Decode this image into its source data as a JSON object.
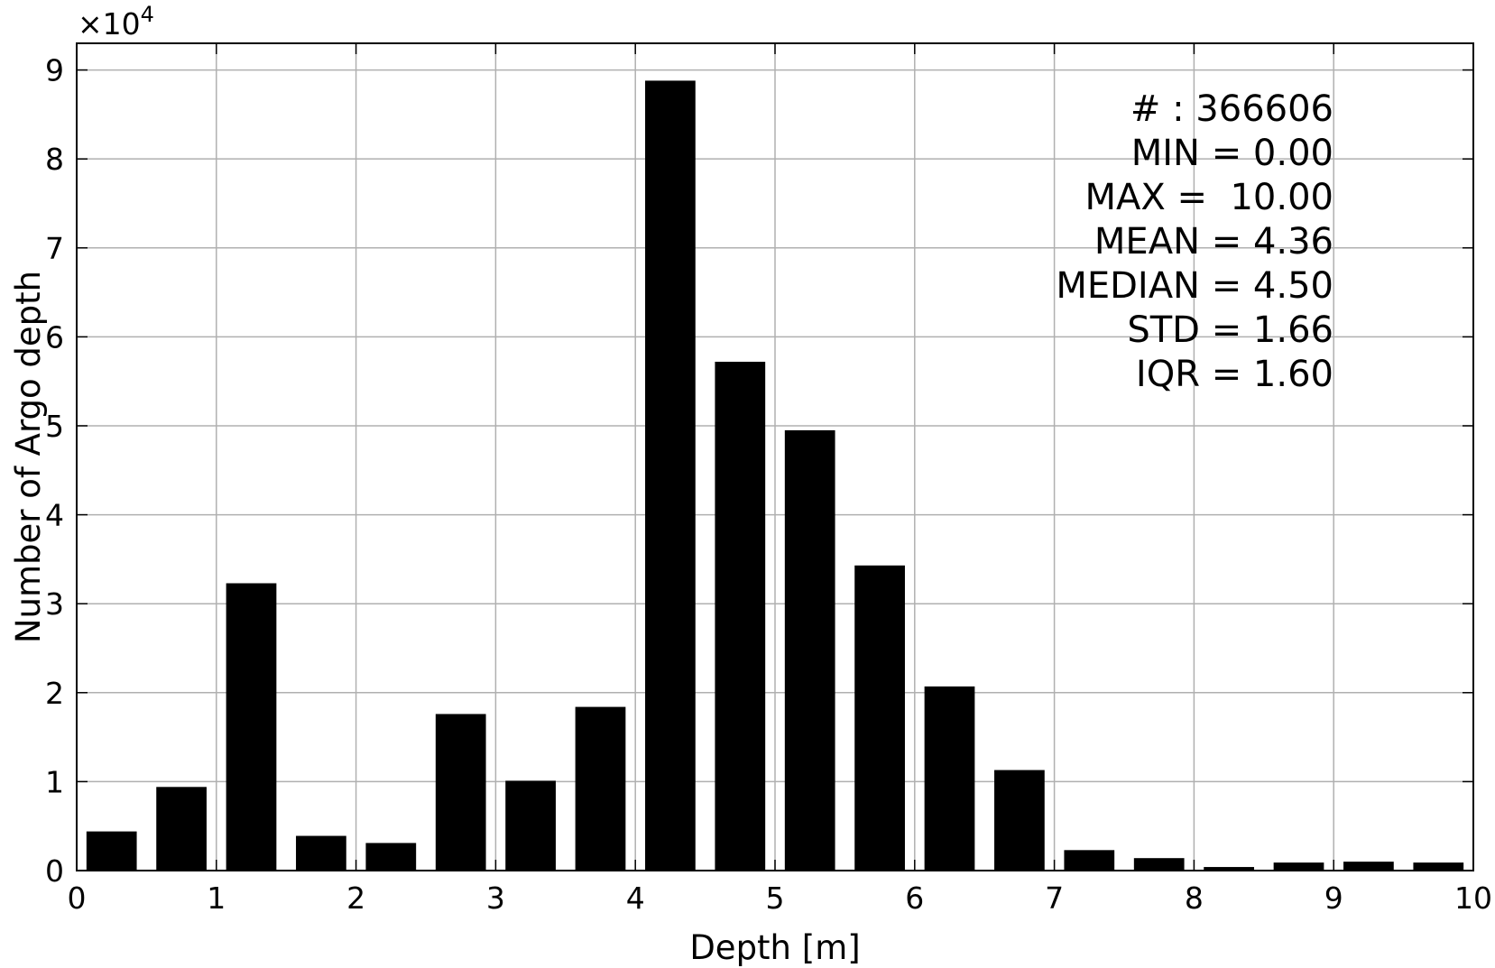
{
  "chart_data": {
    "type": "bar",
    "xlabel": "Depth [m]",
    "ylabel": "Number of Argo depth",
    "y_multiplier_label": "×10",
    "y_multiplier_exponent": "4",
    "xlim": [
      0,
      10
    ],
    "ylim": [
      0,
      93000
    ],
    "x_ticks": [
      0,
      1,
      2,
      3,
      4,
      5,
      6,
      7,
      8,
      9,
      10
    ],
    "y_ticks": [
      0,
      1,
      2,
      3,
      4,
      5,
      6,
      7,
      8,
      9
    ],
    "y_tick_scale": 10000,
    "grid": true,
    "bin_width": 0.5,
    "bar_width": 0.36,
    "bins": [
      {
        "x": 0.25,
        "value": 4400
      },
      {
        "x": 0.75,
        "value": 9400
      },
      {
        "x": 1.25,
        "value": 32300
      },
      {
        "x": 1.75,
        "value": 3900
      },
      {
        "x": 2.25,
        "value": 3100
      },
      {
        "x": 2.75,
        "value": 17600
      },
      {
        "x": 3.25,
        "value": 10100
      },
      {
        "x": 3.75,
        "value": 18400
      },
      {
        "x": 4.25,
        "value": 88800
      },
      {
        "x": 4.75,
        "value": 57200
      },
      {
        "x": 5.25,
        "value": 49500
      },
      {
        "x": 5.75,
        "value": 34300
      },
      {
        "x": 6.25,
        "value": 20700
      },
      {
        "x": 6.75,
        "value": 11300
      },
      {
        "x": 7.25,
        "value": 2300
      },
      {
        "x": 7.75,
        "value": 1400
      },
      {
        "x": 8.25,
        "value": 400
      },
      {
        "x": 8.75,
        "value": 900
      },
      {
        "x": 9.25,
        "value": 1000
      },
      {
        "x": 9.75,
        "value": 900
      }
    ],
    "annotations": [
      "# : 366606",
      "MIN = 0.00",
      "MAX =  10.00",
      "MEAN = 4.36",
      "MEDIAN = 4.50",
      "STD = 1.66",
      "IQR = 1.60"
    ],
    "annotation_placement": "top-right"
  }
}
